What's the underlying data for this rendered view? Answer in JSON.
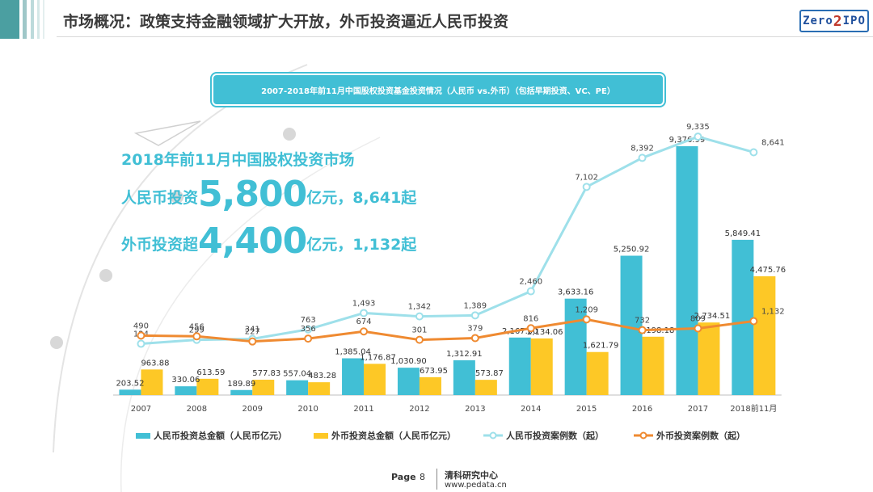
{
  "header": {
    "title": "市场概况：政策支持金融领域扩大开放，外币投资逼近人民币投资",
    "logo_text": "Zero2IPO"
  },
  "highlights": {
    "line1": "2018年前11月中国股权投资市场",
    "line2_prefix": "人民币投资",
    "line2_big": "5,800",
    "line2_suffix": "亿元，8,641起",
    "line3_prefix": "外币投资超",
    "line3_big": "4,400",
    "line3_suffix": "亿元，1,132起"
  },
  "footer": {
    "page_label": "Page",
    "page_number": "8",
    "org": "清科研究中心",
    "url": "www.pedata.cn"
  },
  "colors": {
    "teal": "#41bfd5",
    "yellow": "#fdc826",
    "light_line": "#9ee0ea",
    "orange": "#ef8a31"
  },
  "chart_data": {
    "type": "bar",
    "title": "2007-2018年前11月中国股权投资基金投资情况（人民币 vs.外币）（包括早期投资、VC、PE）",
    "categories": [
      "2007",
      "2008",
      "2009",
      "2010",
      "2011",
      "2012",
      "2013",
      "2014",
      "2015",
      "2016",
      "2017",
      "2018前11月"
    ],
    "series": [
      {
        "name": "人民币投资总金额（人民币亿元）",
        "kind": "bar",
        "color": "#41bfd5",
        "values": [
          203.52,
          330.06,
          189.89,
          557.04,
          1385.04,
          1030.9,
          1312.91,
          2167.0,
          3633.16,
          5250.92,
          9376.99,
          5849.41
        ],
        "labels": [
          "203.52",
          "330.06",
          "189.89",
          "557.04",
          "1,385.04",
          "1,030.90",
          "1,312.91",
          "2,167.00",
          "3,633.16",
          "5,250.92",
          "9,376.99",
          "5,849.41"
        ]
      },
      {
        "name": "外币投资总金额（人民币亿元）",
        "kind": "bar",
        "color": "#fdc826",
        "values": [
          963.88,
          613.59,
          577.83,
          483.28,
          1176.87,
          673.95,
          573.87,
          2134.06,
          1621.79,
          2198.18,
          2734.51,
          4475.76
        ],
        "labels": [
          "963.88",
          "613.59",
          "577.83",
          "483.28",
          "1,176.87",
          "673.95",
          "573.87",
          "2,134.06",
          "1,621.79",
          "2,198.18",
          "2,734.51",
          "4,475.76"
        ]
      },
      {
        "name": "人民币投资案例数（起）",
        "kind": "line",
        "color": "#9ee0ea",
        "values": [
          124,
          299,
          341,
          763,
          1493,
          1342,
          1389,
          2460,
          7102,
          8392,
          9335,
          8641
        ],
        "labels": [
          "124",
          "299",
          "341",
          "763",
          "1,493",
          "1,342",
          "1,389",
          "2,460",
          "7,102",
          "8,392",
          "9,335",
          "8,641"
        ]
      },
      {
        "name": "外币投资案例数（起）",
        "kind": "line",
        "color": "#ef8a31",
        "values": [
          490,
          456,
          227,
          356,
          674,
          301,
          379,
          816,
          1209,
          732,
          809,
          1132
        ],
        "labels": [
          "490",
          "456",
          "227",
          "356",
          "674",
          "301",
          "379",
          "816",
          "1,209",
          "732",
          "809",
          "1,132"
        ]
      }
    ],
    "legend": "bottom",
    "grid": false
  }
}
